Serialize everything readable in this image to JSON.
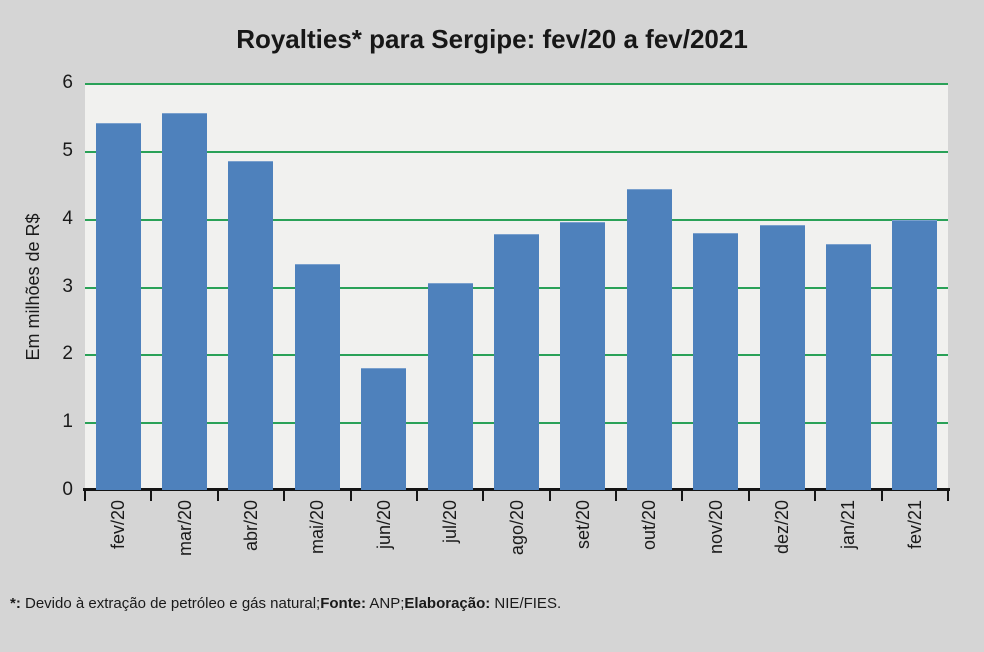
{
  "title": "Royalties* para Sergipe: fev/20 a fev/2021",
  "chart_data": {
    "type": "bar",
    "title": "Royalties* para Sergipe: fev/20 a fev/2021",
    "categories": [
      "fev/20",
      "mar/20",
      "abr/20",
      "mai/20",
      "jun/20",
      "jul/20",
      "ago/20",
      "set/20",
      "out/20",
      "nov/20",
      "dez/20",
      "jan/21",
      "fev/21"
    ],
    "values": [
      5.39,
      5.54,
      4.83,
      3.31,
      1.78,
      3.03,
      3.76,
      3.93,
      4.42,
      3.78,
      3.89,
      3.61,
      3.96
    ],
    "xlabel": "",
    "ylabel": "Em milhões de R$",
    "ylim": [
      0,
      6
    ],
    "yticks": [
      0,
      1,
      2,
      3,
      4,
      5,
      6
    ],
    "grid": true,
    "legend": false,
    "colors": {
      "bar": "#4e81bc",
      "gridline": "#2aa158",
      "plot_background": "#f1f1ef",
      "page_background": "#d5d5d5",
      "axis": "#141414",
      "text": "#1a1a1a"
    }
  },
  "footnote": {
    "parts": [
      {
        "text": "*:",
        "bold": true
      },
      {
        "text": " Devido à extração de petróleo e gás natural;",
        "bold": false
      },
      {
        "text": "Fonte:",
        "bold": true
      },
      {
        "text": " ANP;",
        "bold": false
      },
      {
        "text": "Elaboração:",
        "bold": true
      },
      {
        "text": " NIE/FIES.",
        "bold": false
      }
    ]
  }
}
